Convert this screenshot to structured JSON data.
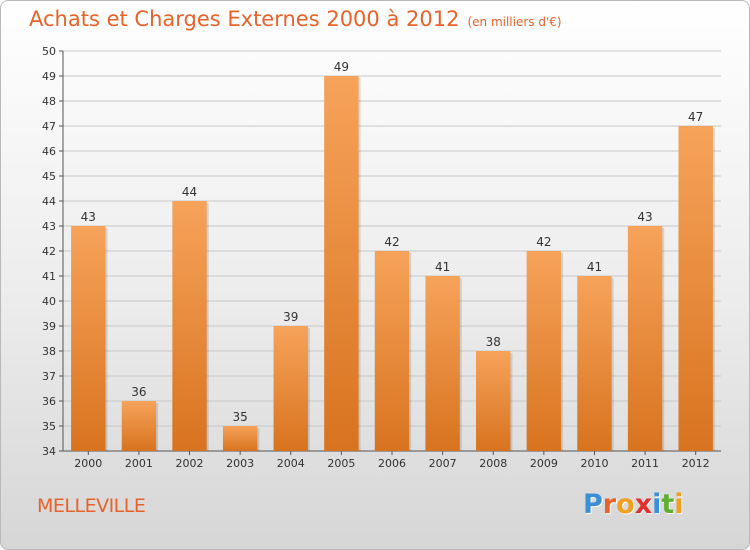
{
  "title": {
    "main": "Achats et Charges Externes 2000 à 2012",
    "unit": "(en milliers d'€)"
  },
  "town": "MELLEVILLE",
  "logo": {
    "letters": [
      {
        "ch": "P",
        "color": "#3a8fd6"
      },
      {
        "ch": "r",
        "color": "#e8622a"
      },
      {
        "ch": "o",
        "color": "#f0a020"
      },
      {
        "ch": "x",
        "color": "#e03030"
      },
      {
        "ch": "i",
        "color": "#3a8fd6"
      },
      {
        "ch": "t",
        "color": "#60b030"
      },
      {
        "ch": "i",
        "color": "#f0a020"
      }
    ]
  },
  "colors": {
    "title": "#e8622a",
    "bar_top": "#f6a35a",
    "bar_bottom": "#d8731f",
    "grid": "#c8c8c8"
  },
  "chart_data": {
    "type": "bar",
    "categories": [
      "2000",
      "2001",
      "2002",
      "2003",
      "2004",
      "2005",
      "2006",
      "2007",
      "2008",
      "2009",
      "2010",
      "2011",
      "2012"
    ],
    "values": [
      43,
      36,
      44,
      35,
      39,
      49,
      42,
      41,
      38,
      42,
      41,
      43,
      47
    ],
    "title": "Achats et Charges Externes 2000 à 2012",
    "xlabel": "",
    "ylabel": "",
    "ylim": [
      34,
      50
    ],
    "yticks": [
      34,
      35,
      36,
      37,
      38,
      39,
      40,
      41,
      42,
      43,
      44,
      45,
      46,
      47,
      48,
      49,
      50
    ],
    "grid": true,
    "data_labels": true
  }
}
